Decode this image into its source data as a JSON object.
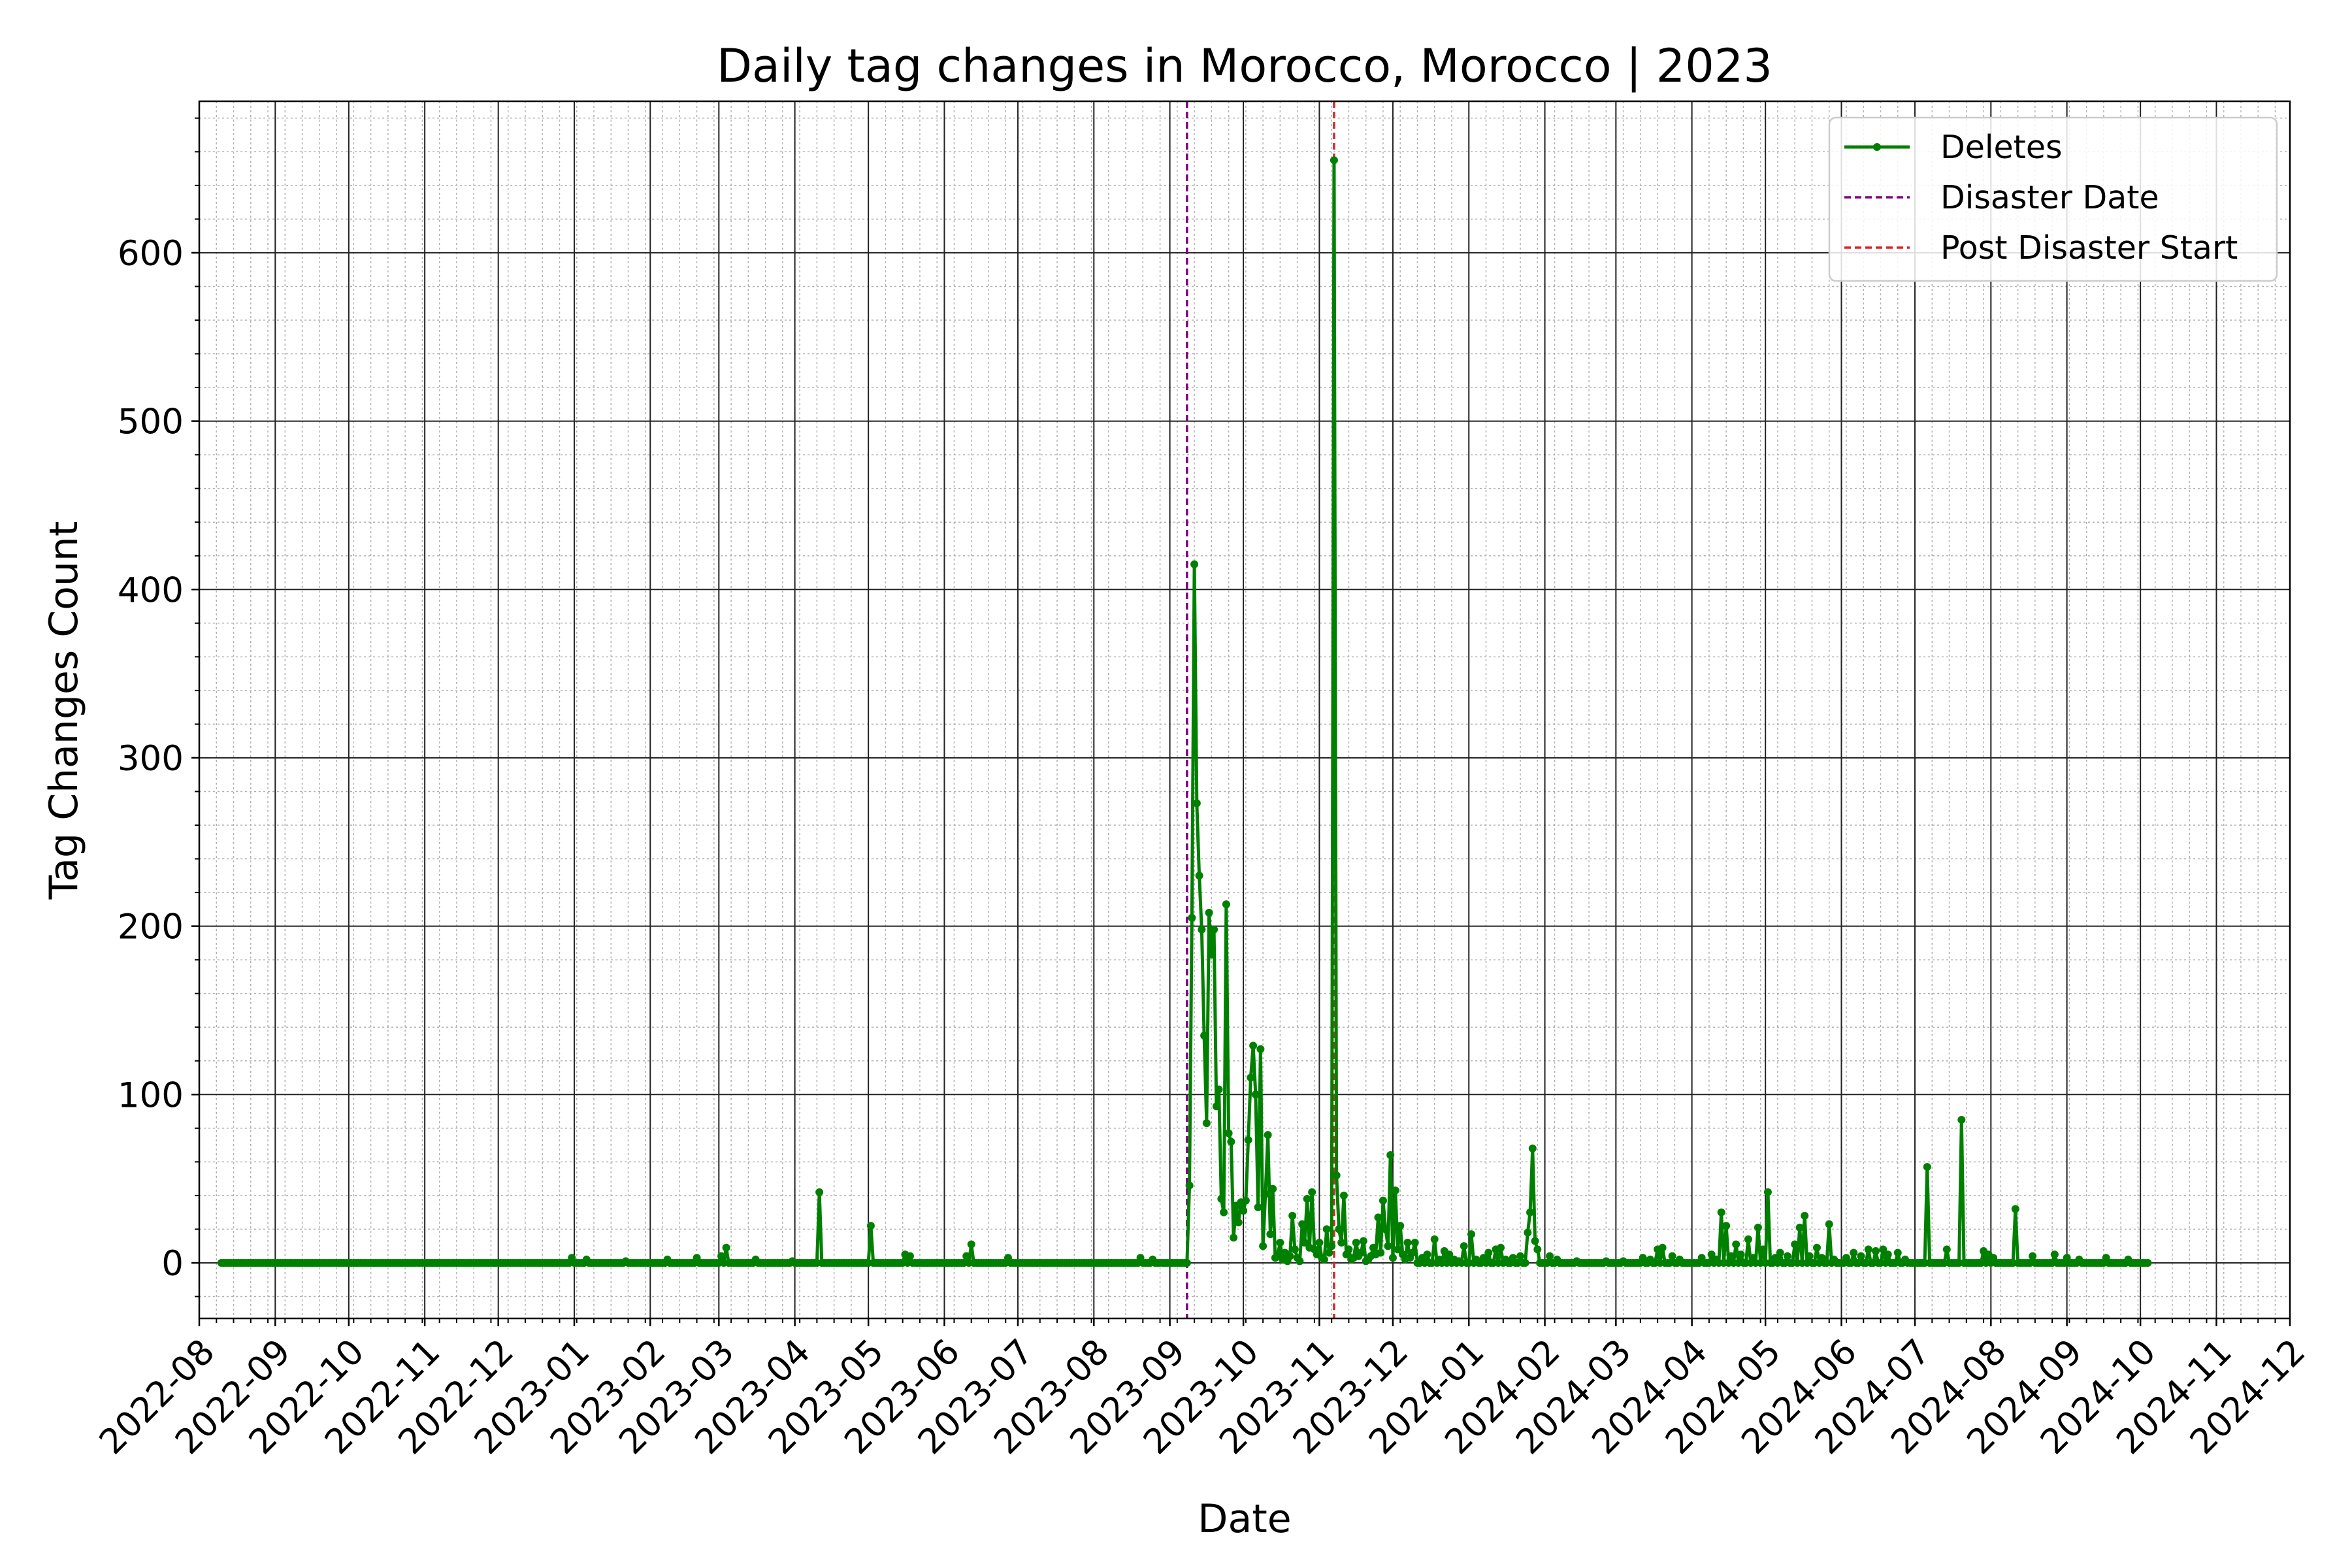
{
  "chart_data": {
    "type": "line",
    "title": "Daily tag changes in Morocco, Morocco | 2023",
    "xlabel": "Date",
    "ylabel": "Tag Changes Count",
    "xlim": [
      "2022-08-01",
      "2024-12-01"
    ],
    "ylim": [
      -33,
      690
    ],
    "yticks": [
      0,
      100,
      200,
      300,
      400,
      500,
      600
    ],
    "xticks": [
      "2022-08",
      "2022-09",
      "2022-10",
      "2022-11",
      "2022-12",
      "2023-01",
      "2023-02",
      "2023-03",
      "2023-04",
      "2023-05",
      "2023-06",
      "2023-07",
      "2023-08",
      "2023-09",
      "2023-10",
      "2023-11",
      "2023-12",
      "2024-01",
      "2024-02",
      "2024-03",
      "2024-04",
      "2024-05",
      "2024-06",
      "2024-07",
      "2024-08",
      "2024-09",
      "2024-10",
      "2024-11",
      "2024-12"
    ],
    "grid": true,
    "legend_position": "top-right",
    "series": [
      {
        "name": "Deletes",
        "color": "#008000",
        "marker": "circle",
        "range": [
          "2022-08-10",
          "2024-10-04"
        ],
        "baseline": 0,
        "points": [
          [
            "2022-12-31",
            3
          ],
          [
            "2023-01-06",
            2
          ],
          [
            "2023-01-22",
            1
          ],
          [
            "2023-02-08",
            2
          ],
          [
            "2023-02-20",
            3
          ],
          [
            "2023-03-02",
            4
          ],
          [
            "2023-03-04",
            9
          ],
          [
            "2023-03-16",
            2
          ],
          [
            "2023-03-31",
            1
          ],
          [
            "2023-04-11",
            42
          ],
          [
            "2023-05-02",
            22
          ],
          [
            "2023-05-16",
            5
          ],
          [
            "2023-05-18",
            4
          ],
          [
            "2023-06-10",
            4
          ],
          [
            "2023-06-12",
            11
          ],
          [
            "2023-06-27",
            3
          ],
          [
            "2023-08-20",
            3
          ],
          [
            "2023-08-25",
            2
          ],
          [
            "2023-09-08",
            0
          ],
          [
            "2023-09-09",
            46
          ],
          [
            "2023-09-10",
            205
          ],
          [
            "2023-09-11",
            415
          ],
          [
            "2023-09-12",
            273
          ],
          [
            "2023-09-13",
            230
          ],
          [
            "2023-09-14",
            198
          ],
          [
            "2023-09-15",
            135
          ],
          [
            "2023-09-16",
            83
          ],
          [
            "2023-09-17",
            208
          ],
          [
            "2023-09-18",
            183
          ],
          [
            "2023-09-19",
            198
          ],
          [
            "2023-09-20",
            93
          ],
          [
            "2023-09-21",
            103
          ],
          [
            "2023-09-22",
            38
          ],
          [
            "2023-09-23",
            30
          ],
          [
            "2023-09-24",
            213
          ],
          [
            "2023-09-25",
            77
          ],
          [
            "2023-09-26",
            72
          ],
          [
            "2023-09-27",
            15
          ],
          [
            "2023-09-28",
            34
          ],
          [
            "2023-09-29",
            24
          ],
          [
            "2023-09-30",
            36
          ],
          [
            "2023-10-01",
            31
          ],
          [
            "2023-10-02",
            37
          ],
          [
            "2023-10-03",
            73
          ],
          [
            "2023-10-04",
            110
          ],
          [
            "2023-10-05",
            129
          ],
          [
            "2023-10-06",
            100
          ],
          [
            "2023-10-07",
            33
          ],
          [
            "2023-10-08",
            127
          ],
          [
            "2023-10-09",
            10
          ],
          [
            "2023-10-10",
            41
          ],
          [
            "2023-10-11",
            76
          ],
          [
            "2023-10-12",
            17
          ],
          [
            "2023-10-13",
            44
          ],
          [
            "2023-10-14",
            3
          ],
          [
            "2023-10-15",
            5
          ],
          [
            "2023-10-16",
            12
          ],
          [
            "2023-10-17",
            2
          ],
          [
            "2023-10-18",
            6
          ],
          [
            "2023-10-19",
            1
          ],
          [
            "2023-10-20",
            4
          ],
          [
            "2023-10-21",
            28
          ],
          [
            "2023-10-22",
            8
          ],
          [
            "2023-10-23",
            3
          ],
          [
            "2023-10-24",
            1
          ],
          [
            "2023-10-25",
            23
          ],
          [
            "2023-10-26",
            12
          ],
          [
            "2023-10-27",
            38
          ],
          [
            "2023-10-28",
            9
          ],
          [
            "2023-10-29",
            42
          ],
          [
            "2023-10-30",
            8
          ],
          [
            "2023-10-31",
            5
          ],
          [
            "2023-11-01",
            12
          ],
          [
            "2023-11-02",
            3
          ],
          [
            "2023-11-03",
            2
          ],
          [
            "2023-11-04",
            20
          ],
          [
            "2023-11-05",
            6
          ],
          [
            "2023-11-06",
            10
          ],
          [
            "2023-11-07",
            655
          ],
          [
            "2023-11-08",
            52
          ],
          [
            "2023-11-09",
            20
          ],
          [
            "2023-11-10",
            12
          ],
          [
            "2023-11-11",
            40
          ],
          [
            "2023-11-12",
            5
          ],
          [
            "2023-11-13",
            8
          ],
          [
            "2023-11-14",
            2
          ],
          [
            "2023-11-15",
            3
          ],
          [
            "2023-11-16",
            12
          ],
          [
            "2023-11-17",
            4
          ],
          [
            "2023-11-18",
            6
          ],
          [
            "2023-11-19",
            13
          ],
          [
            "2023-11-20",
            1
          ],
          [
            "2023-11-21",
            2
          ],
          [
            "2023-11-22",
            4
          ],
          [
            "2023-11-23",
            9
          ],
          [
            "2023-11-24",
            5
          ],
          [
            "2023-11-25",
            27
          ],
          [
            "2023-11-26",
            6
          ],
          [
            "2023-11-27",
            37
          ],
          [
            "2023-11-28",
            20
          ],
          [
            "2023-11-29",
            10
          ],
          [
            "2023-11-30",
            64
          ],
          [
            "2023-12-01",
            3
          ],
          [
            "2023-12-02",
            43
          ],
          [
            "2023-12-03",
            8
          ],
          [
            "2023-12-04",
            22
          ],
          [
            "2023-12-05",
            5
          ],
          [
            "2023-12-06",
            2
          ],
          [
            "2023-12-07",
            12
          ],
          [
            "2023-12-08",
            3
          ],
          [
            "2023-12-09",
            6
          ],
          [
            "2023-12-10",
            12
          ],
          [
            "2023-12-13",
            3
          ],
          [
            "2023-12-15",
            5
          ],
          [
            "2023-12-18",
            14
          ],
          [
            "2023-12-20",
            2
          ],
          [
            "2023-12-22",
            7
          ],
          [
            "2023-12-24",
            5
          ],
          [
            "2023-12-26",
            2
          ],
          [
            "2023-12-28",
            1
          ],
          [
            "2023-12-30",
            10
          ],
          [
            "2024-01-02",
            17
          ],
          [
            "2024-01-04",
            2
          ],
          [
            "2024-01-07",
            3
          ],
          [
            "2024-01-09",
            6
          ],
          [
            "2024-01-12",
            8
          ],
          [
            "2024-01-14",
            9
          ],
          [
            "2024-01-16",
            2
          ],
          [
            "2024-01-19",
            3
          ],
          [
            "2024-01-22",
            4
          ],
          [
            "2024-01-25",
            18
          ],
          [
            "2024-01-26",
            30
          ],
          [
            "2024-01-27",
            68
          ],
          [
            "2024-01-28",
            13
          ],
          [
            "2024-01-29",
            8
          ],
          [
            "2024-02-03",
            4
          ],
          [
            "2024-02-06",
            2
          ],
          [
            "2024-02-14",
            1
          ],
          [
            "2024-02-26",
            1
          ],
          [
            "2024-03-04",
            1
          ],
          [
            "2024-03-12",
            3
          ],
          [
            "2024-03-15",
            2
          ],
          [
            "2024-03-18",
            8
          ],
          [
            "2024-03-20",
            9
          ],
          [
            "2024-03-24",
            4
          ],
          [
            "2024-03-27",
            2
          ],
          [
            "2024-04-05",
            3
          ],
          [
            "2024-04-09",
            5
          ],
          [
            "2024-04-11",
            2
          ],
          [
            "2024-04-13",
            30
          ],
          [
            "2024-04-15",
            22
          ],
          [
            "2024-04-17",
            4
          ],
          [
            "2024-04-19",
            11
          ],
          [
            "2024-04-21",
            5
          ],
          [
            "2024-04-24",
            14
          ],
          [
            "2024-04-26",
            3
          ],
          [
            "2024-04-28",
            21
          ],
          [
            "2024-04-30",
            8
          ],
          [
            "2024-05-02",
            42
          ],
          [
            "2024-05-05",
            3
          ],
          [
            "2024-05-07",
            6
          ],
          [
            "2024-05-10",
            4
          ],
          [
            "2024-05-13",
            11
          ],
          [
            "2024-05-15",
            21
          ],
          [
            "2024-05-17",
            28
          ],
          [
            "2024-05-19",
            4
          ],
          [
            "2024-05-22",
            9
          ],
          [
            "2024-05-24",
            3
          ],
          [
            "2024-05-27",
            23
          ],
          [
            "2024-05-29",
            2
          ],
          [
            "2024-06-03",
            3
          ],
          [
            "2024-06-06",
            6
          ],
          [
            "2024-06-09",
            4
          ],
          [
            "2024-06-12",
            8
          ],
          [
            "2024-06-15",
            7
          ],
          [
            "2024-06-18",
            8
          ],
          [
            "2024-06-20",
            5
          ],
          [
            "2024-06-24",
            6
          ],
          [
            "2024-06-27",
            2
          ],
          [
            "2024-07-06",
            57
          ],
          [
            "2024-07-14",
            8
          ],
          [
            "2024-07-20",
            85
          ],
          [
            "2024-07-29",
            7
          ],
          [
            "2024-07-31",
            5
          ],
          [
            "2024-08-02",
            3
          ],
          [
            "2024-08-11",
            32
          ],
          [
            "2024-08-18",
            4
          ],
          [
            "2024-08-27",
            5
          ],
          [
            "2024-09-01",
            3
          ],
          [
            "2024-09-06",
            2
          ],
          [
            "2024-09-17",
            3
          ],
          [
            "2024-09-26",
            2
          ]
        ]
      }
    ],
    "vlines": [
      {
        "name": "Disaster Date",
        "date": "2023-09-08",
        "color": "#800080"
      },
      {
        "name": "Post Disaster Start",
        "date": "2023-11-07",
        "color": "#d62728"
      }
    ]
  }
}
